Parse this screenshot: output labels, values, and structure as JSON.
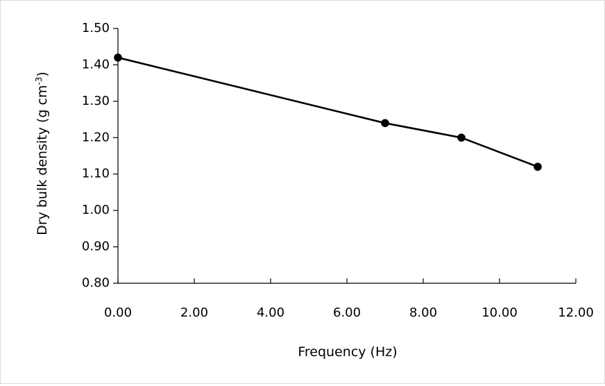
{
  "chart_data": {
    "type": "line",
    "title": "",
    "xlabel": "Frequency (Hz)",
    "ylabel": {
      "base": "Dry bulk density (g cm",
      "superscript": "-3",
      "suffix": ")"
    },
    "xlim": [
      0,
      12
    ],
    "ylim": [
      0.8,
      1.5
    ],
    "x_ticks": [
      0,
      2,
      4,
      6,
      8,
      10,
      12
    ],
    "y_ticks": [
      0.8,
      0.9,
      1.0,
      1.1,
      1.2,
      1.3,
      1.4,
      1.5
    ],
    "x_tick_labels": [
      "0.00",
      "2.00",
      "4.00",
      "6.00",
      "8.00",
      "10.00",
      "12.00"
    ],
    "y_tick_labels": [
      "0.80",
      "0.90",
      "1.00",
      "1.10",
      "1.20",
      "1.30",
      "1.40",
      "1.50"
    ],
    "grid": false,
    "legend": "none",
    "series": [
      {
        "color": "#000000",
        "marker": "circle",
        "points": [
          {
            "x": 0,
            "y": 1.42
          },
          {
            "x": 7,
            "y": 1.24
          },
          {
            "x": 9,
            "y": 1.2
          },
          {
            "x": 11,
            "y": 1.12
          }
        ]
      }
    ]
  }
}
